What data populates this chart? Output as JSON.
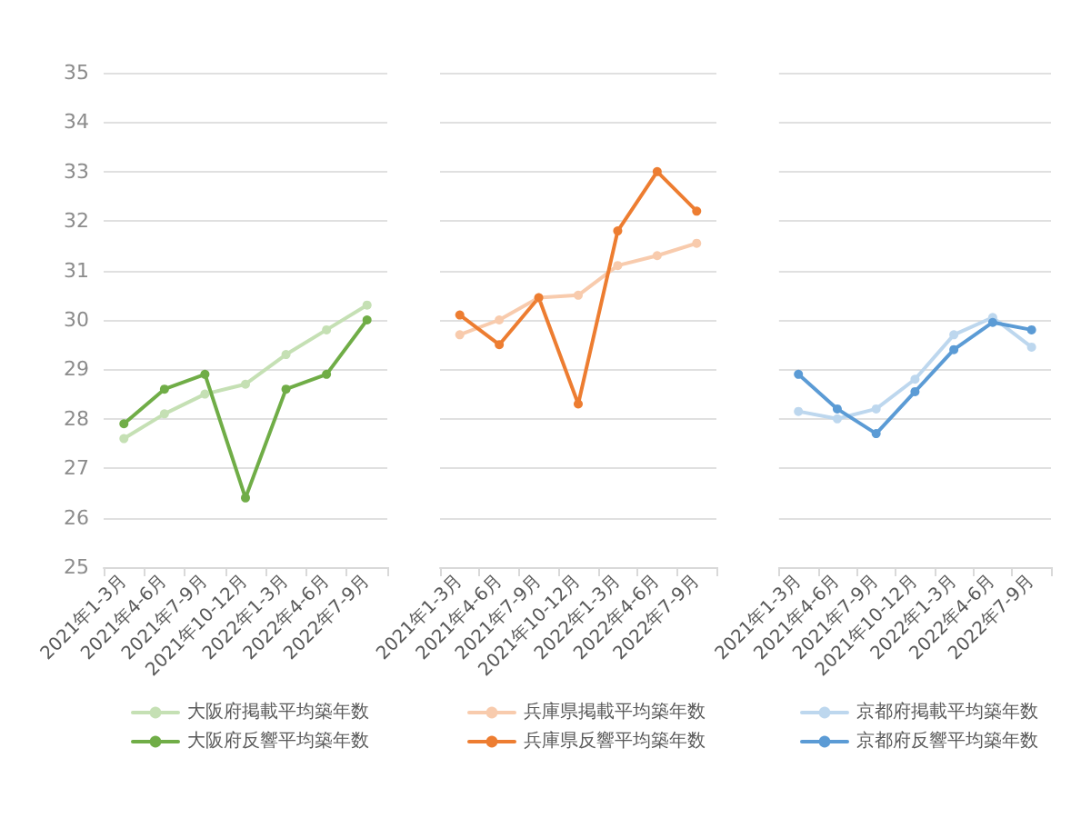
{
  "chart_data": [
    {
      "type": "line",
      "categories": [
        "2021年1-3月",
        "2021年4-6月",
        "2021年7-9月",
        "2021年10-12月",
        "2022年1-3月",
        "2022年4-6月",
        "2022年7-9月"
      ],
      "series": [
        {
          "name": "大阪府掲載平均築年数",
          "color": "#c5e0b4",
          "values": [
            27.6,
            28.1,
            28.5,
            28.7,
            29.3,
            29.8,
            30.3
          ]
        },
        {
          "name": "大阪府反響平均築年数",
          "color": "#70ad47",
          "values": [
            27.9,
            28.6,
            28.9,
            26.4,
            28.6,
            28.9,
            30.0
          ]
        }
      ],
      "ylim": [
        25,
        35
      ],
      "yticks": [
        25,
        26,
        27,
        28,
        29,
        30,
        31,
        32,
        33,
        34,
        35
      ],
      "grid": "y",
      "legend": "bottom",
      "marker": "circle"
    },
    {
      "type": "line",
      "categories": [
        "2021年1-3月",
        "2021年4-6月",
        "2021年7-9月",
        "2021年10-12月",
        "2022年1-3月",
        "2022年4-6月",
        "2022年7-9月"
      ],
      "series": [
        {
          "name": "兵庫県掲載平均築年数",
          "color": "#f8cbad",
          "values": [
            29.7,
            30.0,
            30.45,
            30.5,
            31.1,
            31.3,
            31.55
          ]
        },
        {
          "name": "兵庫県反響平均築年数",
          "color": "#ed7d31",
          "values": [
            30.1,
            29.5,
            30.45,
            28.3,
            31.8,
            33.0,
            32.2
          ]
        }
      ],
      "ylim": [
        25,
        35
      ],
      "yticks": [
        25,
        26,
        27,
        28,
        29,
        30,
        31,
        32,
        33,
        34,
        35
      ],
      "grid": "y",
      "legend": "bottom",
      "marker": "circle",
      "tick_labels": "x"
    },
    {
      "type": "line",
      "categories": [
        "2021年1-3月",
        "2021年4-6月",
        "2021年7-9月",
        "2021年10-12月",
        "2022年1-3月",
        "2022年4-6月",
        "2022年7-9月"
      ],
      "series": [
        {
          "name": "京都府掲載平均築年数",
          "color": "#bdd7ee",
          "values": [
            28.15,
            28.0,
            28.2,
            28.8,
            29.7,
            30.05,
            29.45
          ]
        },
        {
          "name": "京都府反響平均築年数",
          "color": "#5b9bd5",
          "values": [
            28.9,
            28.2,
            27.7,
            28.55,
            29.4,
            29.95,
            29.8
          ]
        }
      ],
      "ylim": [
        25,
        35
      ],
      "yticks": [
        25,
        26,
        27,
        28,
        29,
        30,
        31,
        32,
        33,
        34,
        35
      ],
      "grid": "y",
      "legend": "bottom",
      "marker": "circle",
      "tick_labels": "x"
    }
  ]
}
